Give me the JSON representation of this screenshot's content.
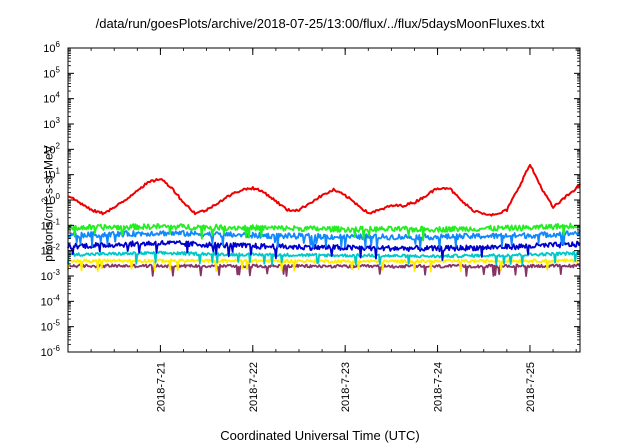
{
  "chart_data": {
    "type": "line",
    "title": "/data/run/goesPlots/archive/2018-07-25/13:00/flux/../flux/5daysMoonFluxes.txt",
    "xlabel": "Coordinated Universal Time (UTC)",
    "ylabel_parts": {
      "prefix": "protons/cm",
      "sup": "2",
      "suffix": "-s-sr-MeV"
    },
    "y_scale": "log",
    "ylim": [
      1e-06,
      1000000.0
    ],
    "y_ticks": [
      {
        "base": "10",
        "exp": "-6",
        "value": 1e-06
      },
      {
        "base": "10",
        "exp": "-5",
        "value": 1e-05
      },
      {
        "base": "10",
        "exp": "-4",
        "value": 0.0001
      },
      {
        "base": "10",
        "exp": "-3",
        "value": 0.001
      },
      {
        "base": "10",
        "exp": "-2",
        "value": 0.01
      },
      {
        "base": "10",
        "exp": "-1",
        "value": 0.1
      },
      {
        "base": "10",
        "exp": "0",
        "value": 1
      },
      {
        "base": "10",
        "exp": "1",
        "value": 10
      },
      {
        "base": "10",
        "exp": "2",
        "value": 100
      },
      {
        "base": "10",
        "exp": "3",
        "value": 1000
      },
      {
        "base": "10",
        "exp": "4",
        "value": 10000
      },
      {
        "base": "10",
        "exp": "5",
        "value": 100000
      },
      {
        "base": "10",
        "exp": "6",
        "value": 1000000
      }
    ],
    "x_scale": "date",
    "xlim": [
      "2018-07-20 00:00",
      "2018-07-25 13:00"
    ],
    "x_ticks": [
      "2018-7-21",
      "2018-7-22",
      "2018-7-23",
      "2018-7-24",
      "2018-7-25"
    ],
    "grid": false,
    "legend": "none",
    "series": [
      {
        "color": "#ee0000",
        "x": [
          "2018-07-20 00:00",
          "2018-07-20 03:00",
          "2018-07-20 06:00",
          "2018-07-20 09:00",
          "2018-07-20 12:00",
          "2018-07-20 15:00",
          "2018-07-20 18:00",
          "2018-07-20 21:00",
          "2018-07-21 00:00",
          "2018-07-21 03:00",
          "2018-07-21 06:00",
          "2018-07-21 09:00",
          "2018-07-21 12:00",
          "2018-07-21 15:00",
          "2018-07-21 18:00",
          "2018-07-21 21:00",
          "2018-07-22 00:00",
          "2018-07-22 03:00",
          "2018-07-22 06:00",
          "2018-07-22 09:00",
          "2018-07-22 12:00",
          "2018-07-22 15:00",
          "2018-07-22 18:00",
          "2018-07-22 21:00",
          "2018-07-23 00:00",
          "2018-07-23 03:00",
          "2018-07-23 06:00",
          "2018-07-23 09:00",
          "2018-07-23 12:00",
          "2018-07-23 15:00",
          "2018-07-23 18:00",
          "2018-07-23 21:00",
          "2018-07-24 00:00",
          "2018-07-24 03:00",
          "2018-07-24 06:00",
          "2018-07-24 09:00",
          "2018-07-24 12:00",
          "2018-07-24 15:00",
          "2018-07-24 18:00",
          "2018-07-24 21:00",
          "2018-07-25 00:00",
          "2018-07-25 03:00",
          "2018-07-25 06:00",
          "2018-07-25 09:00",
          "2018-07-25 13:00"
        ],
        "values": [
          1.5,
          0.8,
          0.4,
          0.3,
          0.5,
          1.0,
          2.5,
          5.0,
          7.0,
          3.0,
          0.8,
          0.3,
          0.4,
          0.8,
          1.5,
          2.5,
          3.0,
          2.0,
          0.9,
          0.4,
          0.4,
          0.8,
          1.5,
          2.5,
          1.5,
          0.7,
          0.3,
          0.4,
          0.6,
          0.6,
          0.8,
          1.5,
          3.0,
          3.0,
          1.0,
          0.4,
          0.3,
          0.25,
          0.4,
          3.0,
          25,
          3.0,
          0.5,
          1.2,
          4.0
        ]
      },
      {
        "color": "#22ee22",
        "x": [
          "2018-07-20 00:00",
          "2018-07-21 00:00",
          "2018-07-22 00:00",
          "2018-07-23 00:00",
          "2018-07-24 00:00",
          "2018-07-25 00:00",
          "2018-07-25 13:00"
        ],
        "values": [
          0.08,
          0.09,
          0.08,
          0.07,
          0.07,
          0.08,
          0.1
        ]
      },
      {
        "color": "#1188ff",
        "x": [
          "2018-07-20 00:00",
          "2018-07-21 00:00",
          "2018-07-22 00:00",
          "2018-07-23 00:00",
          "2018-07-24 00:00",
          "2018-07-25 00:00",
          "2018-07-25 13:00"
        ],
        "values": [
          0.04,
          0.05,
          0.04,
          0.035,
          0.035,
          0.04,
          0.05
        ]
      },
      {
        "color": "#0000cc",
        "x": [
          "2018-07-20 00:00",
          "2018-07-21 00:00",
          "2018-07-22 00:00",
          "2018-07-23 00:00",
          "2018-07-24 00:00",
          "2018-07-25 00:00",
          "2018-07-25 13:00"
        ],
        "values": [
          0.015,
          0.02,
          0.015,
          0.013,
          0.012,
          0.015,
          0.018
        ]
      },
      {
        "color": "#00c8c8",
        "x": [
          "2018-07-20 00:00",
          "2018-07-21 00:00",
          "2018-07-22 00:00",
          "2018-07-23 00:00",
          "2018-07-24 00:00",
          "2018-07-25 00:00",
          "2018-07-25 13:00"
        ],
        "values": [
          0.007,
          0.008,
          0.007,
          0.0065,
          0.006,
          0.007,
          0.008
        ]
      },
      {
        "color": "#ffee00",
        "x": [
          "2018-07-20 00:00",
          "2018-07-21 00:00",
          "2018-07-22 00:00",
          "2018-07-23 00:00",
          "2018-07-24 00:00",
          "2018-07-25 00:00",
          "2018-07-25 13:00"
        ],
        "values": [
          0.004,
          0.004,
          0.004,
          0.0038,
          0.0038,
          0.004,
          0.004
        ]
      },
      {
        "color": "#883366",
        "x": [
          "2018-07-20 00:00",
          "2018-07-21 00:00",
          "2018-07-22 00:00",
          "2018-07-23 00:00",
          "2018-07-24 00:00",
          "2018-07-25 00:00",
          "2018-07-25 13:00"
        ],
        "values": [
          0.0025,
          0.0025,
          0.0025,
          0.0024,
          0.0024,
          0.0025,
          0.0025
        ]
      }
    ]
  }
}
